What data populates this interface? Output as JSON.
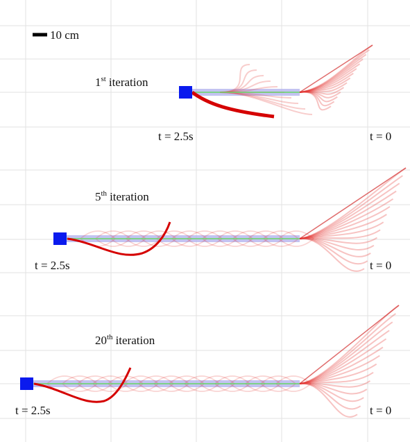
{
  "scale_label": "10 cm",
  "panels": [
    {
      "ordinal": "1",
      "suffix": "st",
      "word": "iteration",
      "t_start": "t = 2.5s",
      "t_end": "t = 0"
    },
    {
      "ordinal": "5",
      "suffix": "th",
      "word": "iteration",
      "t_start": "t = 2.5s",
      "t_end": "t = 0"
    },
    {
      "ordinal": "20",
      "suffix": "th",
      "word": "iteration",
      "t_start": "t = 2.5s",
      "t_end": "t = 0"
    }
  ]
}
